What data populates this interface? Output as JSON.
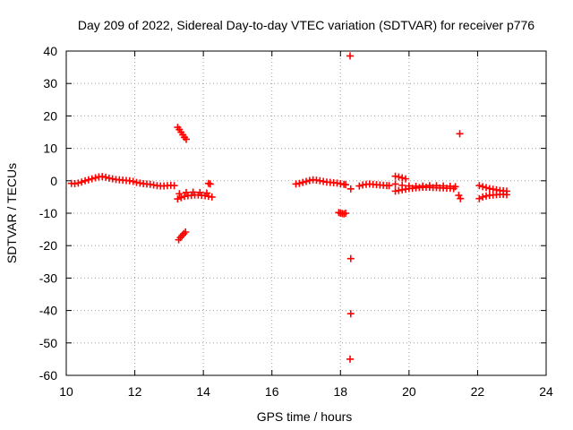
{
  "chart_data": {
    "type": "scatter",
    "title": "Day 209 of 2022, Sidereal Day-to-day VTEC variation (SDTVAR) for receiver p776",
    "xlabel": "GPS time / hours",
    "ylabel": "SDTVAR / TECUs",
    "xlim": [
      10,
      24
    ],
    "ylim": [
      -60,
      40
    ],
    "xticks": [
      10,
      12,
      14,
      16,
      18,
      20,
      22,
      24
    ],
    "yticks": [
      40,
      30,
      20,
      10,
      0,
      -10,
      -20,
      -30,
      -40,
      -50,
      -60
    ],
    "grid": true,
    "marker": "+",
    "colors": {
      "points": "#ff0000",
      "grid": "#a0a0a0",
      "axes": "#000000"
    },
    "series": [
      {
        "name": "p776",
        "points": [
          [
            10.15,
            -0.8
          ],
          [
            10.25,
            -0.9
          ],
          [
            10.35,
            -0.7
          ],
          [
            10.45,
            -0.4
          ],
          [
            10.55,
            0.0
          ],
          [
            10.65,
            0.3
          ],
          [
            10.75,
            0.6
          ],
          [
            10.85,
            0.9
          ],
          [
            10.95,
            1.2
          ],
          [
            11.05,
            1.3
          ],
          [
            11.15,
            1.1
          ],
          [
            11.25,
            0.8
          ],
          [
            11.35,
            0.6
          ],
          [
            11.45,
            0.4
          ],
          [
            11.55,
            0.3
          ],
          [
            11.65,
            0.2
          ],
          [
            11.75,
            0.1
          ],
          [
            11.85,
            0.0
          ],
          [
            11.95,
            -0.2
          ],
          [
            12.05,
            -0.5
          ],
          [
            12.15,
            -0.7
          ],
          [
            12.25,
            -0.9
          ],
          [
            12.35,
            -1.0
          ],
          [
            12.45,
            -1.1
          ],
          [
            12.55,
            -1.3
          ],
          [
            12.65,
            -1.5
          ],
          [
            12.75,
            -1.6
          ],
          [
            12.85,
            -1.6
          ],
          [
            12.95,
            -1.5
          ],
          [
            13.05,
            -1.4
          ],
          [
            13.15,
            -1.5
          ],
          [
            13.25,
            16.5
          ],
          [
            13.3,
            15.8
          ],
          [
            13.35,
            15.0
          ],
          [
            13.4,
            14.2
          ],
          [
            13.45,
            13.4
          ],
          [
            13.5,
            12.8
          ],
          [
            13.28,
            -18.2
          ],
          [
            13.33,
            -17.5
          ],
          [
            13.38,
            -16.9
          ],
          [
            13.43,
            -16.3
          ],
          [
            13.48,
            -15.8
          ],
          [
            13.25,
            -5.6
          ],
          [
            13.35,
            -5.2
          ],
          [
            13.45,
            -4.8
          ],
          [
            13.55,
            -4.6
          ],
          [
            13.65,
            -4.5
          ],
          [
            13.75,
            -4.4
          ],
          [
            13.85,
            -4.4
          ],
          [
            13.95,
            -4.5
          ],
          [
            14.05,
            -4.6
          ],
          [
            14.15,
            -4.8
          ],
          [
            14.25,
            -5.0
          ],
          [
            13.3,
            -4.0
          ],
          [
            13.5,
            -3.6
          ],
          [
            13.7,
            -3.5
          ],
          [
            13.9,
            -3.6
          ],
          [
            14.1,
            -3.8
          ],
          [
            14.15,
            -0.8
          ],
          [
            14.2,
            -1.0
          ],
          [
            16.7,
            -1.0
          ],
          [
            16.8,
            -0.8
          ],
          [
            16.9,
            -0.5
          ],
          [
            17.0,
            -0.2
          ],
          [
            17.1,
            0.1
          ],
          [
            17.2,
            0.3
          ],
          [
            17.3,
            0.2
          ],
          [
            17.4,
            0.0
          ],
          [
            17.5,
            -0.2
          ],
          [
            17.6,
            -0.4
          ],
          [
            17.7,
            -0.5
          ],
          [
            17.8,
            -0.6
          ],
          [
            17.9,
            -0.7
          ],
          [
            18.0,
            -0.9
          ],
          [
            18.1,
            -1.1
          ],
          [
            18.15,
            -1.2
          ],
          [
            17.95,
            -9.8
          ],
          [
            18.0,
            -10.0
          ],
          [
            18.05,
            -10.1
          ],
          [
            18.1,
            -10.2
          ],
          [
            18.15,
            -10.0
          ],
          [
            18.28,
            38.5
          ],
          [
            18.3,
            -2.5
          ],
          [
            18.3,
            -24.0
          ],
          [
            18.3,
            -41.0
          ],
          [
            18.28,
            -55.0
          ],
          [
            18.55,
            -1.6
          ],
          [
            18.65,
            -1.3
          ],
          [
            18.75,
            -1.1
          ],
          [
            18.85,
            -1.0
          ],
          [
            18.95,
            -1.1
          ],
          [
            19.05,
            -1.2
          ],
          [
            19.15,
            -1.3
          ],
          [
            19.25,
            -1.4
          ],
          [
            19.35,
            -1.5
          ],
          [
            19.42,
            -1.5
          ],
          [
            19.6,
            1.4
          ],
          [
            19.7,
            1.2
          ],
          [
            19.8,
            0.9
          ],
          [
            19.9,
            0.6
          ],
          [
            19.6,
            -3.2
          ],
          [
            19.7,
            -3.0
          ],
          [
            19.8,
            -2.8
          ],
          [
            19.9,
            -2.6
          ],
          [
            20.0,
            -2.4
          ],
          [
            20.1,
            -2.3
          ],
          [
            20.2,
            -2.2
          ],
          [
            20.3,
            -2.1
          ],
          [
            20.4,
            -2.0
          ],
          [
            20.5,
            -2.0
          ],
          [
            20.6,
            -2.0
          ],
          [
            20.7,
            -2.1
          ],
          [
            20.8,
            -2.1
          ],
          [
            20.9,
            -2.2
          ],
          [
            21.0,
            -2.2
          ],
          [
            21.1,
            -2.3
          ],
          [
            21.2,
            -2.3
          ],
          [
            21.3,
            -2.4
          ],
          [
            19.6,
            -1.0
          ],
          [
            19.8,
            -1.4
          ],
          [
            20.0,
            -1.6
          ],
          [
            20.2,
            -1.7
          ],
          [
            20.4,
            -1.6
          ],
          [
            20.6,
            -1.5
          ],
          [
            20.8,
            -1.5
          ],
          [
            21.0,
            -1.6
          ],
          [
            21.2,
            -1.7
          ],
          [
            21.35,
            -1.8
          ],
          [
            21.48,
            14.5
          ],
          [
            21.45,
            -4.5
          ],
          [
            21.5,
            -5.5
          ],
          [
            22.05,
            -1.5
          ],
          [
            22.15,
            -1.8
          ],
          [
            22.25,
            -2.1
          ],
          [
            22.35,
            -2.4
          ],
          [
            22.45,
            -2.6
          ],
          [
            22.55,
            -2.8
          ],
          [
            22.65,
            -3.0
          ],
          [
            22.75,
            -3.1
          ],
          [
            22.85,
            -3.2
          ],
          [
            22.05,
            -5.5
          ],
          [
            22.15,
            -5.0
          ],
          [
            22.25,
            -4.7
          ],
          [
            22.35,
            -4.5
          ],
          [
            22.45,
            -4.4
          ],
          [
            22.55,
            -4.3
          ],
          [
            22.65,
            -4.2
          ],
          [
            22.75,
            -4.2
          ],
          [
            22.85,
            -4.3
          ]
        ]
      }
    ]
  }
}
